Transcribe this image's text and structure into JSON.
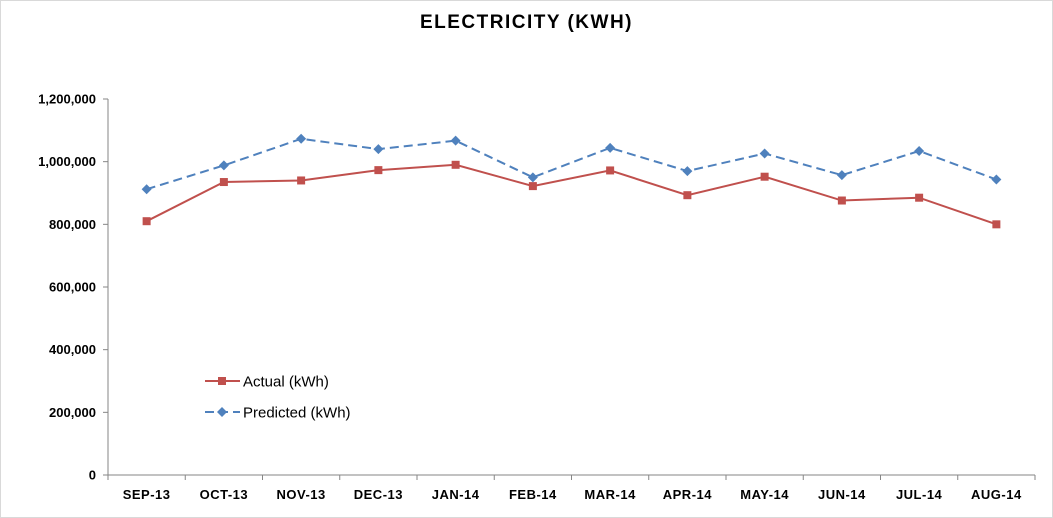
{
  "chart_data": {
    "type": "line",
    "title": "ELECTRICITY (KWH)",
    "xlabel": "",
    "ylabel": "",
    "categories": [
      "SEP-13",
      "OCT-13",
      "NOV-13",
      "DEC-13",
      "JAN-14",
      "FEB-14",
      "MAR-14",
      "APR-14",
      "MAY-14",
      "JUN-14",
      "JUL-14",
      "AUG-14"
    ],
    "y_ticks": [
      "0",
      "200,000",
      "400,000",
      "600,000",
      "800,000",
      "1,000,000",
      "1,200,000"
    ],
    "ylim": [
      0,
      1200000
    ],
    "grid": false,
    "legend_position": "lower-left",
    "series": [
      {
        "name": "Actual (kWh)",
        "color": "#c0504d",
        "marker": "square",
        "dash": "solid",
        "values": [
          810000,
          935000,
          940000,
          973000,
          990000,
          922000,
          972000,
          893000,
          952000,
          876000,
          885000,
          800000
        ]
      },
      {
        "name": "Predicted (kWh)",
        "color": "#4f81bd",
        "marker": "diamond",
        "dash": "dashed",
        "values": [
          912000,
          988000,
          1073000,
          1040000,
          1067000,
          950000,
          1044000,
          970000,
          1026000,
          957000,
          1034000,
          943000
        ]
      }
    ]
  }
}
